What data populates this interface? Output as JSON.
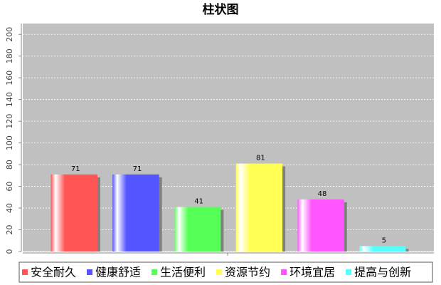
{
  "chart_data": {
    "type": "bar",
    "title": "柱状图",
    "categories": [
      null
    ],
    "series": [
      {
        "name": "安全耐久",
        "color": "#ff5555",
        "values": [
          71
        ]
      },
      {
        "name": "健康舒适",
        "color": "#5555ff",
        "values": [
          71
        ]
      },
      {
        "name": "生活便利",
        "color": "#55ff55",
        "values": [
          41
        ]
      },
      {
        "name": "资源节约",
        "color": "#ffff55",
        "values": [
          81
        ]
      },
      {
        "name": "环境宜居",
        "color": "#ff55ff",
        "values": [
          48
        ]
      },
      {
        "name": "提高与创新",
        "color": "#55ffff",
        "values": [
          5
        ]
      }
    ],
    "ylim": [
      0,
      210
    ],
    "yticks": [
      0,
      20,
      40,
      60,
      80,
      100,
      120,
      140,
      160,
      180,
      200
    ],
    "grid": true,
    "legend": "bottom"
  }
}
